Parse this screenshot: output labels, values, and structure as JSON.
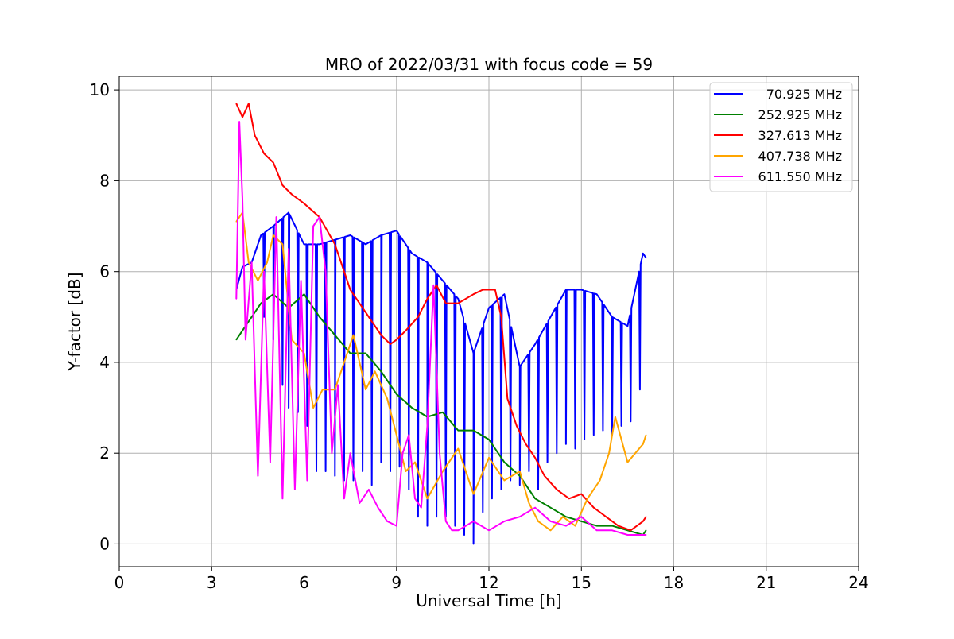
{
  "chart_data": {
    "type": "line",
    "title": "MRO of 2022/03/31 with focus code = 59",
    "xlabel": "Universal Time [h]",
    "ylabel": "Y-factor [dB]",
    "xlim": [
      0,
      24
    ],
    "ylim": [
      -0.5,
      10.3
    ],
    "xticks": [
      0,
      3,
      6,
      9,
      12,
      15,
      18,
      21,
      24
    ],
    "yticks": [
      0,
      2,
      4,
      6,
      8,
      10
    ],
    "grid": true,
    "legend_position": "top-right",
    "series": [
      {
        "name": "70.925 MHz",
        "label": "  70.925 MHz",
        "color": "#0000ff",
        "x": [
          3.8,
          4.0,
          4.3,
          4.6,
          5.0,
          5.5,
          6.0,
          6.5,
          7.0,
          7.5,
          8.0,
          8.5,
          9.0,
          9.5,
          10.0,
          10.5,
          11.0,
          11.5,
          12.0,
          12.5,
          13.0,
          13.5,
          14.0,
          14.5,
          15.0,
          15.5,
          16.0,
          16.5,
          17.0,
          17.1
        ],
        "y": [
          5.6,
          6.1,
          6.2,
          6.8,
          7.0,
          7.3,
          6.6,
          6.6,
          6.7,
          6.8,
          6.6,
          6.8,
          6.9,
          6.4,
          6.2,
          5.8,
          5.4,
          4.2,
          5.2,
          5.5,
          3.9,
          4.4,
          5.0,
          5.6,
          5.6,
          5.5,
          5.0,
          4.8,
          6.4,
          6.3
        ],
        "dips": {
          "x": [
            4.7,
            5.0,
            5.3,
            5.5,
            5.8,
            6.1,
            6.4,
            6.7,
            7.0,
            7.3,
            7.6,
            7.9,
            8.2,
            8.5,
            8.8,
            9.1,
            9.4,
            9.7,
            10.0,
            10.3,
            10.6,
            10.9,
            11.2,
            11.5,
            11.8,
            12.1,
            12.4,
            12.7,
            13.0,
            13.3,
            13.6,
            13.9,
            14.2,
            14.5,
            14.8,
            15.1,
            15.4,
            15.7,
            16.0,
            16.3,
            16.6,
            16.9
          ],
          "y": [
            5.0,
            4.5,
            3.5,
            3.0,
            2.9,
            2.6,
            1.6,
            1.6,
            1.5,
            1.4,
            1.4,
            1.6,
            1.3,
            1.8,
            1.6,
            1.7,
            1.2,
            0.6,
            0.4,
            0.6,
            0.6,
            0.4,
            0.2,
            0.0,
            0.7,
            1.0,
            1.2,
            1.4,
            1.3,
            1.6,
            1.2,
            1.8,
            2.0,
            2.2,
            2.1,
            2.3,
            2.4,
            2.5,
            2.4,
            2.6,
            2.7,
            3.4
          ]
        }
      },
      {
        "name": "252.925 MHz",
        "label": "252.925 MHz",
        "color": "#008000",
        "x": [
          3.8,
          4.0,
          4.3,
          4.6,
          5.0,
          5.5,
          6.0,
          6.5,
          7.0,
          7.5,
          8.0,
          8.5,
          9.0,
          9.5,
          10.0,
          10.5,
          11.0,
          11.5,
          12.0,
          12.5,
          13.0,
          13.5,
          14.0,
          14.5,
          15.0,
          15.5,
          16.0,
          16.5,
          17.0,
          17.1
        ],
        "y": [
          4.5,
          4.7,
          5.0,
          5.3,
          5.5,
          5.2,
          5.5,
          5.0,
          4.6,
          4.2,
          4.2,
          3.8,
          3.3,
          3.0,
          2.8,
          2.9,
          2.5,
          2.5,
          2.3,
          1.8,
          1.5,
          1.0,
          0.8,
          0.6,
          0.5,
          0.4,
          0.4,
          0.3,
          0.2,
          0.3
        ]
      },
      {
        "name": "327.613 MHz",
        "label": "327.613 MHz",
        "color": "#ff0000",
        "x": [
          3.8,
          4.0,
          4.2,
          4.4,
          4.7,
          5.0,
          5.3,
          5.6,
          6.0,
          6.5,
          7.0,
          7.5,
          8.0,
          8.5,
          8.8,
          9.0,
          9.3,
          9.7,
          10.0,
          10.3,
          10.6,
          11.0,
          11.5,
          11.8,
          12.2,
          12.4,
          12.6,
          12.9,
          13.2,
          13.5,
          13.8,
          14.2,
          14.6,
          15.0,
          15.4,
          15.8,
          16.2,
          16.6,
          17.0,
          17.1
        ],
        "y": [
          9.7,
          9.4,
          9.7,
          9.0,
          8.6,
          8.4,
          7.9,
          7.7,
          7.5,
          7.2,
          6.6,
          5.6,
          5.1,
          4.6,
          4.4,
          4.5,
          4.7,
          5.0,
          5.4,
          5.7,
          5.3,
          5.3,
          5.5,
          5.6,
          5.6,
          5.0,
          3.2,
          2.6,
          2.2,
          1.9,
          1.5,
          1.2,
          1.0,
          1.1,
          0.8,
          0.6,
          0.4,
          0.3,
          0.5,
          0.6
        ]
      },
      {
        "name": "407.738 MHz",
        "label": "407.738 MHz",
        "color": "#ffa500",
        "x": [
          3.8,
          4.0,
          4.2,
          4.5,
          4.8,
          5.0,
          5.3,
          5.6,
          6.0,
          6.3,
          6.6,
          7.0,
          7.3,
          7.6,
          8.0,
          8.3,
          8.7,
          9.0,
          9.3,
          9.6,
          10.0,
          10.5,
          11.0,
          11.5,
          12.0,
          12.5,
          13.0,
          13.3,
          13.6,
          14.0,
          14.4,
          14.8,
          15.2,
          15.6,
          15.9,
          16.1,
          16.5,
          17.0,
          17.1
        ],
        "y": [
          7.1,
          7.3,
          6.2,
          5.8,
          6.2,
          6.8,
          6.6,
          4.5,
          4.2,
          3.0,
          3.4,
          3.4,
          4.0,
          4.6,
          3.4,
          3.8,
          3.2,
          2.4,
          1.6,
          1.8,
          1.0,
          1.6,
          2.1,
          1.1,
          1.9,
          1.4,
          1.6,
          0.9,
          0.5,
          0.3,
          0.6,
          0.4,
          1.0,
          1.4,
          2.0,
          2.8,
          1.8,
          2.2,
          2.4
        ]
      },
      {
        "name": "611.550 MHz",
        "label": "611.550 MHz",
        "color": "#ff00ff",
        "x": [
          3.8,
          3.9,
          4.0,
          4.1,
          4.3,
          4.5,
          4.7,
          4.9,
          5.1,
          5.3,
          5.5,
          5.7,
          5.9,
          6.1,
          6.3,
          6.5,
          6.7,
          6.9,
          7.1,
          7.3,
          7.5,
          7.8,
          8.1,
          8.4,
          8.7,
          9.0,
          9.2,
          9.4,
          9.6,
          9.8,
          10.0,
          10.2,
          10.4,
          10.6,
          10.8,
          11.0,
          11.5,
          12.0,
          12.5,
          13.0,
          13.5,
          14.0,
          14.5,
          15.0,
          15.5,
          16.0,
          16.5,
          17.0,
          17.1
        ],
        "y": [
          5.4,
          9.3,
          7.6,
          4.5,
          6.2,
          1.5,
          6.0,
          1.8,
          7.2,
          1.0,
          6.5,
          1.2,
          5.8,
          1.4,
          7.0,
          7.2,
          6.0,
          2.0,
          3.5,
          1.0,
          2.0,
          0.9,
          1.2,
          0.8,
          0.5,
          0.4,
          2.0,
          2.4,
          1.0,
          0.8,
          2.6,
          5.7,
          2.0,
          0.5,
          0.3,
          0.3,
          0.5,
          0.3,
          0.5,
          0.6,
          0.8,
          0.5,
          0.4,
          0.6,
          0.3,
          0.3,
          0.2,
          0.2,
          0.2
        ]
      }
    ]
  }
}
